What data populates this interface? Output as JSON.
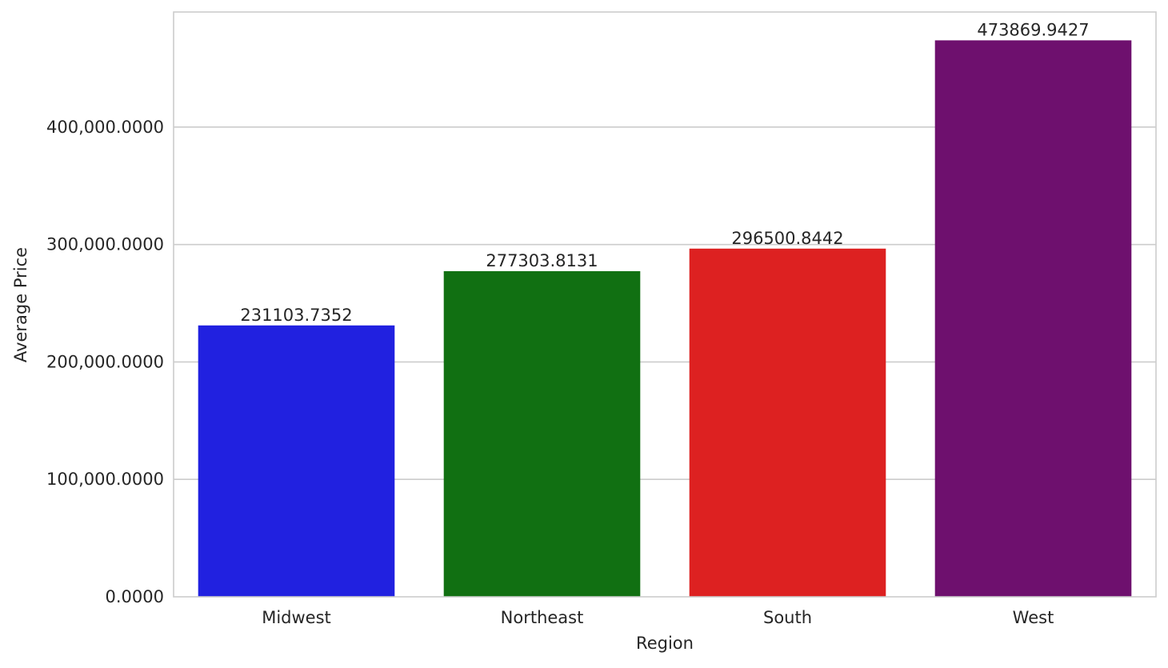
{
  "chart_data": {
    "type": "bar",
    "title": "",
    "xlabel": "Region",
    "ylabel": "Average Price",
    "categories": [
      "Midwest",
      "Northeast",
      "South",
      "West"
    ],
    "values": [
      231103.7352,
      277303.8131,
      296500.8442,
      473869.9427
    ],
    "value_labels": [
      "231103.7352",
      "277303.8131",
      "296500.8442",
      "473869.9427"
    ],
    "colors": [
      "#2121e0",
      "#117012",
      "#dd2121",
      "#6e106e"
    ],
    "ylim": [
      0,
      498000
    ],
    "yticks": [
      0,
      100000,
      200000,
      300000,
      400000
    ],
    "ytick_labels": [
      "0.0000",
      "100,000.0000",
      "200,000.0000",
      "300,000.0000",
      "400,000.0000"
    ],
    "grid": "horizontal",
    "legend": "none"
  }
}
